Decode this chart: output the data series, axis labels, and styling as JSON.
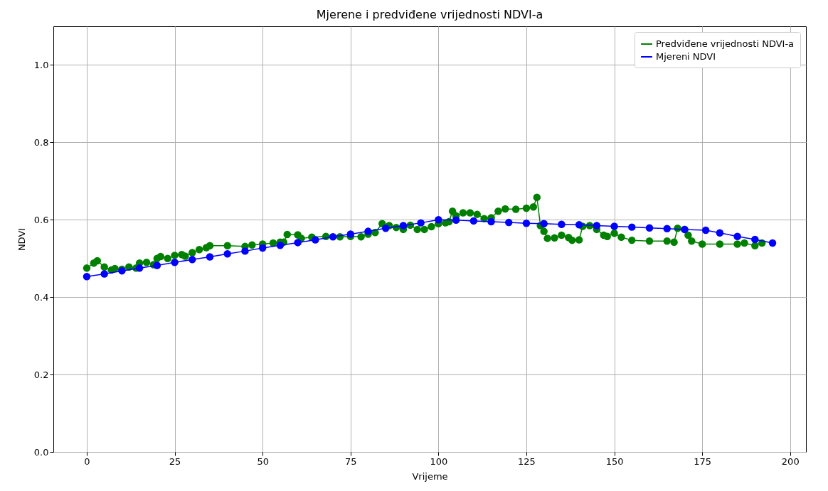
{
  "chart_data": {
    "type": "line",
    "title": "Mjerene i predviđene vrijednosti NDVI-a",
    "xlabel": "Vrijeme",
    "ylabel": "NDVI",
    "xlim": [
      -9.5,
      204.5
    ],
    "ylim": [
      0,
      1.1
    ],
    "xticks": [
      0,
      25,
      50,
      75,
      100,
      125,
      150,
      175,
      200
    ],
    "yticks": [
      {
        "value": 0,
        "label": "0.0"
      },
      0.2,
      0.4,
      0.6,
      0.8,
      {
        "value": 1,
        "label": "1.0"
      }
    ],
    "grid": true,
    "legend": "top right",
    "marker": "circle",
    "line_style": "solid",
    "series": [
      {
        "name": "Predviđene vrijednosti NDVI-a",
        "color": "#008000",
        "x": [
          0,
          2,
          3,
          5,
          7,
          8,
          10,
          12,
          14,
          15,
          17,
          19,
          20,
          21,
          23,
          25,
          27,
          28,
          30,
          32,
          34,
          35,
          40,
          45,
          47,
          50,
          53,
          55,
          56,
          57,
          60,
          61,
          64,
          68,
          72,
          75,
          78,
          80,
          82,
          84,
          86,
          88,
          90,
          92,
          94,
          96,
          98,
          100,
          102,
          103,
          104,
          105,
          107,
          109,
          111,
          113,
          115,
          117,
          119,
          122,
          125,
          127,
          128,
          129,
          130,
          131,
          133,
          135,
          137,
          138,
          140,
          141,
          143,
          145,
          147,
          148,
          150,
          152,
          155,
          160,
          165,
          167,
          168,
          170,
          171,
          172,
          175,
          180,
          185,
          187,
          190,
          192
        ],
        "values": [
          0.475,
          0.488,
          0.494,
          0.478,
          0.47,
          0.474,
          0.472,
          0.478,
          0.475,
          0.488,
          0.49,
          0.484,
          0.5,
          0.505,
          0.5,
          0.508,
          0.51,
          0.506,
          0.515,
          0.523,
          0.528,
          0.533,
          0.533,
          0.531,
          0.535,
          0.537,
          0.54,
          0.542,
          0.542,
          0.562,
          0.561,
          0.552,
          0.555,
          0.557,
          0.556,
          0.557,
          0.556,
          0.563,
          0.567,
          0.59,
          0.585,
          0.58,
          0.575,
          0.586,
          0.575,
          0.575,
          0.582,
          0.59,
          0.592,
          0.595,
          0.622,
          0.61,
          0.618,
          0.618,
          0.614,
          0.603,
          0.605,
          0.622,
          0.628,
          0.627,
          0.63,
          0.633,
          0.658,
          0.585,
          0.57,
          0.552,
          0.553,
          0.56,
          0.554,
          0.547,
          0.548,
          0.583,
          0.585,
          0.575,
          0.56,
          0.557,
          0.565,
          0.555,
          0.547,
          0.545,
          0.545,
          0.542,
          0.578,
          0.575,
          0.56,
          0.545,
          0.537,
          0.537,
          0.537,
          0.54,
          0.533,
          0.54
        ]
      },
      {
        "name": "Mjereni NDVI",
        "color": "#0000ff",
        "x": [
          0,
          5,
          10,
          15,
          20,
          25,
          30,
          35,
          40,
          45,
          50,
          55,
          60,
          65,
          70,
          75,
          80,
          85,
          90,
          95,
          100,
          105,
          110,
          115,
          120,
          125,
          130,
          135,
          140,
          145,
          150,
          155,
          160,
          165,
          170,
          176,
          180,
          185,
          190,
          195
        ],
        "values": [
          0.453,
          0.46,
          0.468,
          0.475,
          0.482,
          0.49,
          0.497,
          0.504,
          0.512,
          0.519,
          0.527,
          0.534,
          0.541,
          0.548,
          0.556,
          0.563,
          0.57,
          0.578,
          0.585,
          0.592,
          0.6,
          0.599,
          0.597,
          0.595,
          0.593,
          0.591,
          0.59,
          0.588,
          0.587,
          0.585,
          0.583,
          0.581,
          0.579,
          0.577,
          0.575,
          0.573,
          0.566,
          0.557,
          0.549,
          0.54
        ]
      }
    ]
  }
}
